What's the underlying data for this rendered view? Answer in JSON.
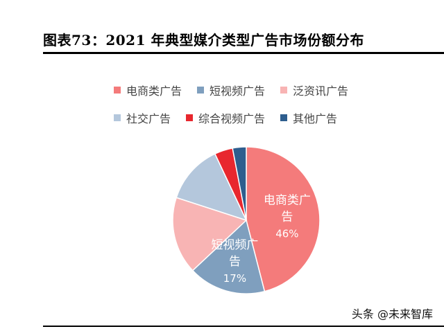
{
  "title": "图表73：2021 年典型媒介类型广告市场份额分布",
  "watermark": "头条 @未来智库",
  "chart_data": {
    "type": "pie",
    "title": "",
    "legend_position": "top",
    "slices": [
      {
        "label": "电商类广告",
        "value": 46,
        "color": "#F47B7B",
        "text_color": "#ffffff",
        "shown_label": "电商类广告",
        "shown_value": "46%"
      },
      {
        "label": "短视频广告",
        "value": 17,
        "color": "#7F9FBE",
        "text_color": "#ffffff",
        "shown_label": "短视频广告",
        "shown_value": "17%"
      },
      {
        "label": "泛资讯广告",
        "value": 17,
        "color": "#F8B4B4",
        "text_color": "#ffffff",
        "shown_label": "",
        "shown_value": ""
      },
      {
        "label": "社交广告",
        "value": 13,
        "color": "#B4C7DC",
        "text_color": "#ffffff",
        "shown_label": "",
        "shown_value": ""
      },
      {
        "label": "综合视频广告",
        "value": 4,
        "color": "#E8272E",
        "text_color": "#ffffff",
        "shown_label": "",
        "shown_value": ""
      },
      {
        "label": "其他广告",
        "value": 3,
        "color": "#2E5E8E",
        "text_color": "#ffffff",
        "shown_label": "",
        "shown_value": ""
      }
    ]
  }
}
